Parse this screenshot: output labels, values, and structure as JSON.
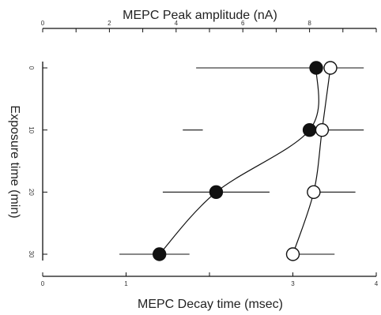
{
  "chart_data": {
    "type": "scatter",
    "top_axis": {
      "label": "MEPC Peak amplitude (nA)",
      "range": [
        0,
        10
      ],
      "ticks": [
        0,
        1,
        2,
        3,
        4,
        5,
        6,
        7,
        8,
        9,
        10
      ],
      "tick_labels": [
        "0",
        "",
        "2",
        "",
        "4",
        "",
        "6",
        "",
        "8",
        "",
        ""
      ]
    },
    "bottom_axis": {
      "label": "MEPC Decay time (msec)",
      "range": [
        0,
        4
      ],
      "ticks": [
        0,
        1,
        2,
        3,
        4
      ],
      "tick_labels": [
        "0",
        "1",
        "",
        "3",
        "4"
      ]
    },
    "y_axis": {
      "label": "Exposure time (min)",
      "range": [
        0,
        30
      ],
      "ticks": [
        0,
        10,
        20,
        30
      ],
      "tick_labels": [
        "0",
        "10",
        "20",
        "30"
      ]
    },
    "series": [
      {
        "marker": "filled-circle",
        "axis": "top",
        "points": [
          {
            "y": 0,
            "x": 8.2,
            "err": [
              4.6,
              8.2
            ]
          },
          {
            "y": 10,
            "x": 8.0,
            "err": [
              4.2,
              4.8
            ]
          },
          {
            "y": 20,
            "x": 5.2,
            "err": [
              3.6,
              6.8
            ]
          },
          {
            "y": 30,
            "x": 3.5,
            "err": [
              2.3,
              4.4
            ]
          }
        ]
      },
      {
        "marker": "open-circle",
        "axis": "bottom",
        "points": [
          {
            "y": 0,
            "x": 3.45,
            "err": [
              3.45,
              3.85
            ]
          },
          {
            "y": 10,
            "x": 3.35,
            "err": [
              3.35,
              3.85
            ]
          },
          {
            "y": 20,
            "x": 3.25,
            "err": [
              3.25,
              3.75
            ]
          },
          {
            "y": 30,
            "x": 3.0,
            "err": [
              3.0,
              3.5
            ]
          }
        ]
      }
    ]
  }
}
